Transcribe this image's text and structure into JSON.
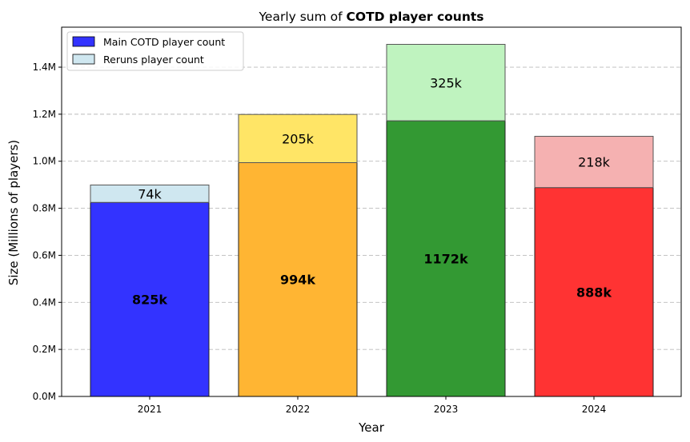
{
  "chart_data": {
    "type": "bar",
    "stacked": true,
    "title": {
      "prefix": "Yearly sum of ",
      "bold": "COTD player counts"
    },
    "xlabel": "Year",
    "ylabel": "Size (Millions of players)",
    "categories": [
      "2021",
      "2022",
      "2023",
      "2024"
    ],
    "ylim": [
      0,
      1570000
    ],
    "yticks": [
      0,
      200000,
      400000,
      600000,
      800000,
      1000000,
      1200000,
      1400000
    ],
    "ytick_labels": [
      "0.0M",
      "0.2M",
      "0.4M",
      "0.6M",
      "0.8M",
      "1.0M",
      "1.2M",
      "1.4M"
    ],
    "grid": "y-dashed",
    "legend_position": "top-left",
    "series": [
      {
        "name": "Main COTD player count",
        "values": [
          825000,
          994000,
          1172000,
          888000
        ],
        "labels": [
          "825k",
          "994k",
          "1172k",
          "888k"
        ],
        "colors": [
          "#3333ff",
          "#ffb533",
          "#339933",
          "#ff3333"
        ],
        "legend_color": "#3333ff"
      },
      {
        "name": "Reruns player count",
        "values": [
          74000,
          205000,
          325000,
          218000
        ],
        "labels": [
          "74k",
          "205k",
          "325k",
          "218k"
        ],
        "colors": [
          "#cfe7f0",
          "#ffe566",
          "#bff3bf",
          "#f5b1b1"
        ],
        "legend_color": "#cfe7f0"
      }
    ]
  }
}
